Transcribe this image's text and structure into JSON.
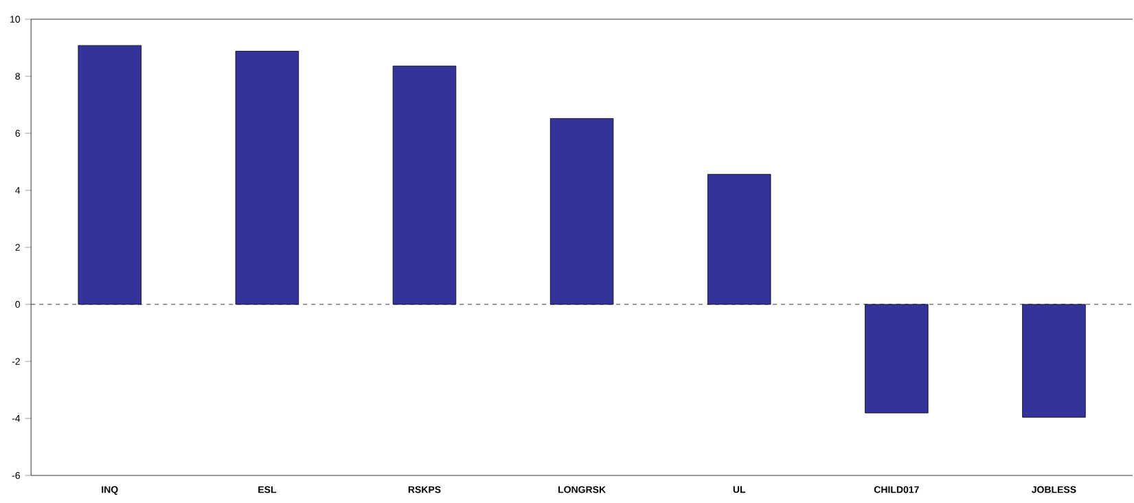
{
  "chart_data": {
    "type": "bar",
    "categories": [
      "INQ",
      "ESL",
      "RSKPS",
      "LONGRSK",
      "UL",
      "CHILD017",
      "JOBLESS"
    ],
    "values": [
      9.08,
      8.88,
      8.36,
      6.52,
      4.56,
      -3.81,
      -3.96
    ],
    "color": "#333399",
    "ylim": [
      -6,
      10
    ],
    "yticks": [
      -6,
      -4,
      -2,
      0,
      2,
      4,
      6,
      8,
      10
    ],
    "ref_lines": [
      {
        "axis": "y",
        "value": 0,
        "line_style": "dashed"
      }
    ],
    "grid": false
  }
}
